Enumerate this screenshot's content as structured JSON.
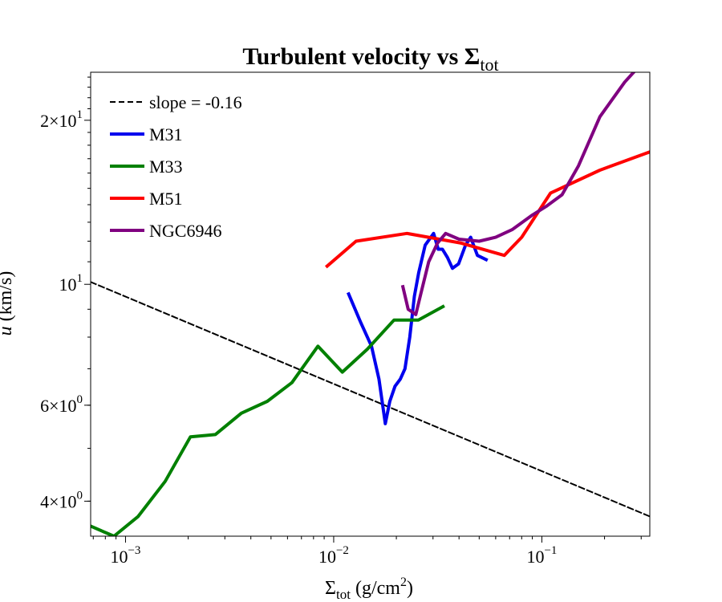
{
  "chart_data": {
    "type": "line",
    "title": "Turbulent velocity vs Σ",
    "title_sub": "tot",
    "xlabel_main": "Σ",
    "xlabel_sub": "tot",
    "xlabel_unit": " (g/cm",
    "xlabel_sup": "2",
    "xlabel_close": ")",
    "ylabel_var": "u",
    "ylabel_unit": " (km/s)",
    "xscale": "log",
    "yscale": "log",
    "xlim": [
      0.00068,
      0.33
    ],
    "ylim": [
      3.45,
      24.5
    ],
    "grid": false,
    "legend_position": "top-left",
    "x_ticks": [
      {
        "value": 0.001,
        "base": "10",
        "exp": "−3"
      },
      {
        "value": 0.01,
        "base": "10",
        "exp": "−2"
      },
      {
        "value": 0.1,
        "base": "10",
        "exp": "−1"
      }
    ],
    "y_ticks": [
      {
        "value": 4,
        "base": "4×10",
        "exp": "0"
      },
      {
        "value": 6,
        "base": "6×10",
        "exp": "0"
      },
      {
        "value": 10,
        "base": "10",
        "exp": "1"
      },
      {
        "value": 20,
        "base": "2×10",
        "exp": "1"
      }
    ],
    "series": [
      {
        "name": "slope = -0.16",
        "color": "#000000",
        "dashed": true,
        "points": [
          [
            0.00068,
            10.1
          ],
          [
            0.33,
            3.75
          ]
        ]
      },
      {
        "name": "M31",
        "color": "#0000ee",
        "dashed": false,
        "points": [
          [
            0.0118,
            9.6
          ],
          [
            0.0135,
            8.5
          ],
          [
            0.0152,
            7.7
          ],
          [
            0.0165,
            6.7
          ],
          [
            0.0177,
            5.55
          ],
          [
            0.0186,
            6.1
          ],
          [
            0.0197,
            6.5
          ],
          [
            0.0209,
            6.7
          ],
          [
            0.022,
            7.0
          ],
          [
            0.0232,
            8.0
          ],
          [
            0.0244,
            9.5
          ],
          [
            0.0256,
            10.5
          ],
          [
            0.0275,
            11.8
          ],
          [
            0.0302,
            12.4
          ],
          [
            0.0318,
            11.6
          ],
          [
            0.0333,
            11.6
          ],
          [
            0.0352,
            11.2
          ],
          [
            0.0372,
            10.7
          ],
          [
            0.0398,
            10.9
          ],
          [
            0.043,
            11.8
          ],
          [
            0.0455,
            12.2
          ],
          [
            0.049,
            11.3
          ],
          [
            0.054,
            11.1
          ]
        ]
      },
      {
        "name": "M33",
        "color": "#008000",
        "dashed": false,
        "points": [
          [
            0.00068,
            3.6
          ],
          [
            0.00088,
            3.45
          ],
          [
            0.00115,
            3.75
          ],
          [
            0.00155,
            4.35
          ],
          [
            0.00205,
            5.25
          ],
          [
            0.0027,
            5.3
          ],
          [
            0.0036,
            5.8
          ],
          [
            0.0048,
            6.1
          ],
          [
            0.0063,
            6.6
          ],
          [
            0.0084,
            7.7
          ],
          [
            0.011,
            6.9
          ],
          [
            0.0145,
            7.6
          ],
          [
            0.0195,
            8.6
          ],
          [
            0.0255,
            8.6
          ],
          [
            0.0335,
            9.1
          ]
        ]
      },
      {
        "name": "M51",
        "color": "#ff0000",
        "dashed": false,
        "points": [
          [
            0.0093,
            10.8
          ],
          [
            0.0128,
            12.0
          ],
          [
            0.0225,
            12.4
          ],
          [
            0.041,
            11.9
          ],
          [
            0.066,
            11.3
          ],
          [
            0.08,
            12.2
          ],
          [
            0.11,
            14.7
          ],
          [
            0.19,
            16.2
          ],
          [
            0.33,
            17.5
          ]
        ]
      },
      {
        "name": "NGC6946",
        "color": "#800080",
        "dashed": false,
        "points": [
          [
            0.0215,
            9.9
          ],
          [
            0.0228,
            9.0
          ],
          [
            0.0248,
            8.8
          ],
          [
            0.0262,
            9.6
          ],
          [
            0.0286,
            11.0
          ],
          [
            0.0315,
            11.9
          ],
          [
            0.0345,
            12.4
          ],
          [
            0.04,
            12.1
          ],
          [
            0.05,
            12.0
          ],
          [
            0.06,
            12.2
          ],
          [
            0.072,
            12.6
          ],
          [
            0.09,
            13.4
          ],
          [
            0.105,
            13.9
          ],
          [
            0.125,
            14.6
          ],
          [
            0.15,
            16.5
          ],
          [
            0.19,
            20.3
          ],
          [
            0.25,
            23.5
          ],
          [
            0.29,
            25.0
          ]
        ]
      }
    ]
  }
}
